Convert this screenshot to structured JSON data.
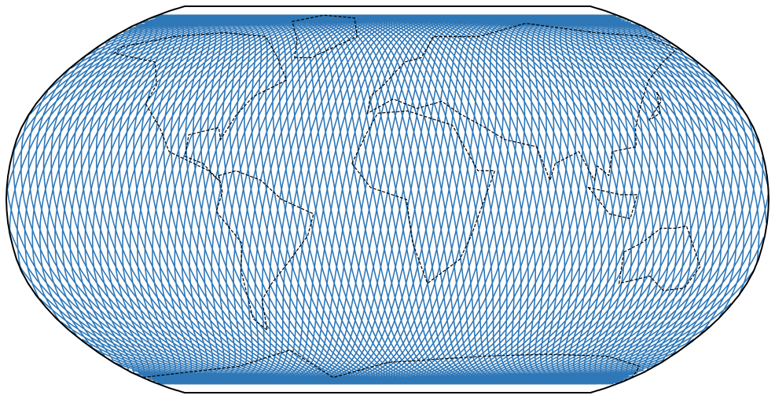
{
  "map": {
    "track_color": "#2f78b8",
    "outline_color": "#000000",
    "coastline_color": "#000000"
  }
}
